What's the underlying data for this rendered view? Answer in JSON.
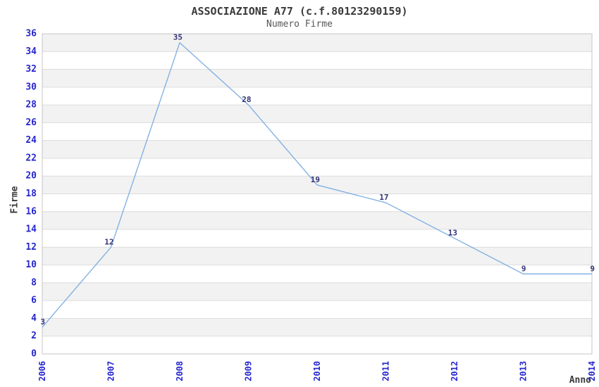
{
  "chart_data": {
    "type": "line",
    "title": "ASSOCIAZIONE A77 (c.f.80123290159)",
    "subtitle": "Numero Firme",
    "xlabel": "Anno",
    "ylabel": "Firme",
    "categories": [
      "2006",
      "2007",
      "2008",
      "2009",
      "2010",
      "2011",
      "2012",
      "2013",
      "2014"
    ],
    "series": [
      {
        "name": "Numero Firme",
        "values": [
          3,
          12,
          35,
          28,
          19,
          17,
          13,
          9,
          9
        ]
      }
    ],
    "point_labels": [
      "3",
      "12",
      "35",
      "28",
      "19",
      "17",
      "13",
      "9",
      "9"
    ],
    "ylim": [
      0,
      36
    ],
    "ytick_step": 2,
    "grid": "horizontal",
    "banding": "alternating-horizontal",
    "legend": "none"
  },
  "colors": {
    "line": "#7cade2",
    "band": "#f2f2f2",
    "gridline": "#dcdcdc",
    "plot_border": "#c6c6c6",
    "tick_label": "#2626cf",
    "point_label": "#333377",
    "title": "#3a3a3a",
    "subtitle": "#565656",
    "axis_title": "#3a3a3a",
    "background": "#ffffff"
  }
}
